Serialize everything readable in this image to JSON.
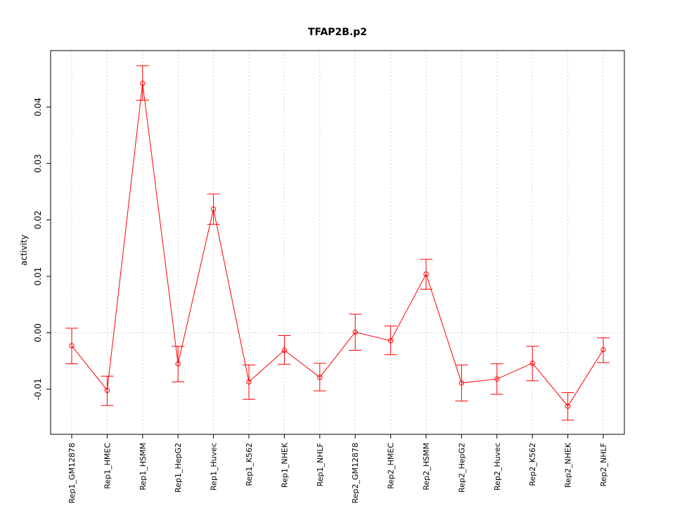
{
  "chart_data": {
    "type": "line",
    "title": "TFAP2B.p2",
    "xlabel": "",
    "ylabel": "activity",
    "ylim": [
      -0.018,
      0.05
    ],
    "yticks": [
      -0.01,
      0.0,
      0.01,
      0.02,
      0.03,
      0.04
    ],
    "ytick_labels": [
      "-0.01",
      "0.00",
      "0.01",
      "0.02",
      "0.03",
      "0.04"
    ],
    "grid": true,
    "reference_line": 0,
    "color": "#ff0000",
    "categories": [
      "Rep1_GM12878",
      "Rep1_HMEC",
      "Rep1_HSMM",
      "Rep1_HepG2",
      "Rep1_Huvec",
      "Rep1_K562",
      "Rep1_NHEK",
      "Rep1_NHLF",
      "Rep2_GM12878",
      "Rep2_HMEC",
      "Rep2_HSMM",
      "Rep2_HepG2",
      "Rep2_Huvec",
      "Rep2_K562",
      "Rep2_NHEK",
      "Rep2_NHLF"
    ],
    "values": [
      -0.0023,
      -0.0102,
      0.0442,
      -0.0055,
      0.0219,
      -0.0087,
      -0.0031,
      -0.0079,
      0.0001,
      -0.0014,
      0.0104,
      -0.0089,
      -0.0082,
      -0.0054,
      -0.013,
      -0.003
    ],
    "err_upper": [
      0.0008,
      -0.0077,
      0.0473,
      -0.0024,
      0.0246,
      -0.0057,
      -0.0005,
      -0.0054,
      0.0033,
      0.0012,
      0.013,
      -0.0057,
      -0.0055,
      -0.0024,
      -0.0106,
      -0.0009
    ],
    "err_lower": [
      -0.0055,
      -0.0129,
      0.0412,
      -0.0087,
      0.0192,
      -0.0118,
      -0.0056,
      -0.0103,
      -0.0031,
      -0.0039,
      0.0077,
      -0.0121,
      -0.0109,
      -0.0085,
      -0.0155,
      -0.0053
    ]
  }
}
